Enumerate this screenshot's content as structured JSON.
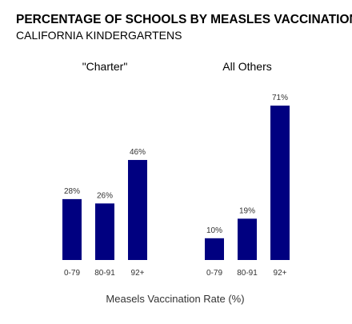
{
  "chart_data": {
    "type": "bar",
    "title": "PERCENTAGE OF SCHOOLS BY MEASLES VACCINATION RATE",
    "subtitle": "CALIFORNIA KINDERGARTENS",
    "xlabel": "Measels Vaccination Rate (%)",
    "ylabel": "",
    "ylim": [
      0,
      71
    ],
    "grid": false,
    "bar_color": "#000080",
    "panels": [
      {
        "name": "\"Charter\"",
        "categories": [
          "0-79",
          "80-91",
          "92+"
        ],
        "values": [
          28,
          26,
          46
        ],
        "value_labels": [
          "28%",
          "26%",
          "46%"
        ]
      },
      {
        "name": "All Others",
        "categories": [
          "0-79",
          "80-91",
          "92+"
        ],
        "values": [
          10,
          19,
          71
        ],
        "value_labels": [
          "10%",
          "19%",
          "71%"
        ]
      }
    ]
  }
}
